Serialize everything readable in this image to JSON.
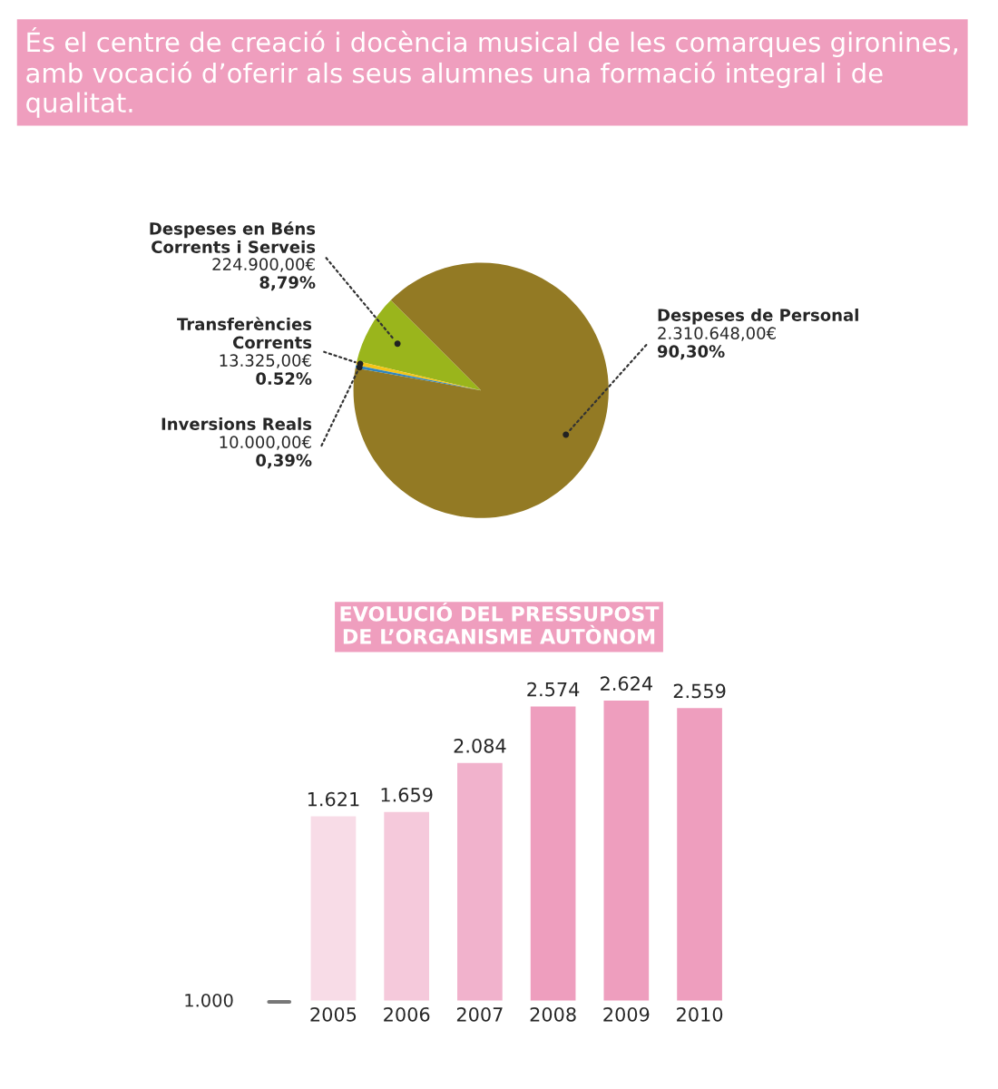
{
  "chart_data": [
    {
      "type": "pie",
      "title": "És el centre de creació i docència musical de les comarques gironines, amb vocació d’oferir als seus alumnes una formació integral i de qualitat.",
      "categories": [
        "Despeses en Béns Corrents i Serveis",
        "Transferències Corrents",
        "Inversions Reals",
        "Despeses de Personal"
      ],
      "values": [
        224900,
        13325,
        10000,
        2310648
      ],
      "value_labels": [
        "224.900,00€",
        "13.325,00€",
        "10.000,00€",
        "2.310.648,00€"
      ],
      "annotations": [
        "8,79%",
        "0.52%",
        "0,39%",
        "90,30%"
      ],
      "colors": [
        "#9ab51c",
        "#f5c518",
        "#2e86c1",
        "#937a24"
      ]
    },
    {
      "type": "bar",
      "title": "EVOLUCIÓ DEL PRESSUPOST DE L’ORGANISME AUTÒNOM",
      "categories": [
        "2005",
        "2006",
        "2007",
        "2008",
        "2009",
        "2010"
      ],
      "values": [
        1621,
        1659,
        2084,
        2574,
        2624,
        2559
      ],
      "value_labels": [
        "1.621",
        "1.659",
        "2.084",
        "2.574",
        "2.624",
        "2.559"
      ],
      "colors": [
        "#f8dce7",
        "#f5c9db",
        "#f1b2cc",
        "#ee9ebe",
        "#ee9ebe",
        "#ee9ebe"
      ],
      "annotations": [
        "1.000"
      ],
      "grid": false
    }
  ]
}
